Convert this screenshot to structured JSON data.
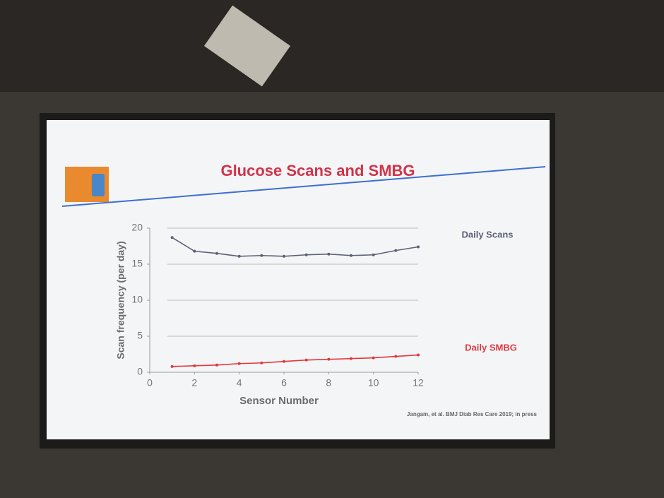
{
  "chart_data": {
    "type": "line",
    "title": "Glucose Scans and SMBG",
    "x_label": "Sensor Number",
    "y_label": "Scan frequency (per day)",
    "source": "Jangam, et al.  BMJ Diab Res Care 2019; in press",
    "x": [
      1,
      2,
      3,
      4,
      5,
      6,
      7,
      8,
      9,
      10,
      11,
      12
    ],
    "series": [
      {
        "name": "Daily Scans",
        "color": "#5b6075",
        "values": [
          18.7,
          16.8,
          16.5,
          16.1,
          16.2,
          16.1,
          16.3,
          16.4,
          16.2,
          16.3,
          16.9,
          17.4
        ]
      },
      {
        "name": "Daily SMBG",
        "color": "#e0383e",
        "values": [
          0.8,
          0.9,
          1.0,
          1.2,
          1.3,
          1.5,
          1.7,
          1.8,
          1.9,
          2.0,
          2.2,
          2.4
        ]
      }
    ],
    "xlim": [
      0,
      12
    ],
    "xticks": [
      0,
      2,
      4,
      6,
      8,
      10,
      12
    ],
    "ylim": [
      0,
      20
    ],
    "yticks": [
      0,
      5,
      10,
      15,
      20
    ],
    "grid": true
  }
}
